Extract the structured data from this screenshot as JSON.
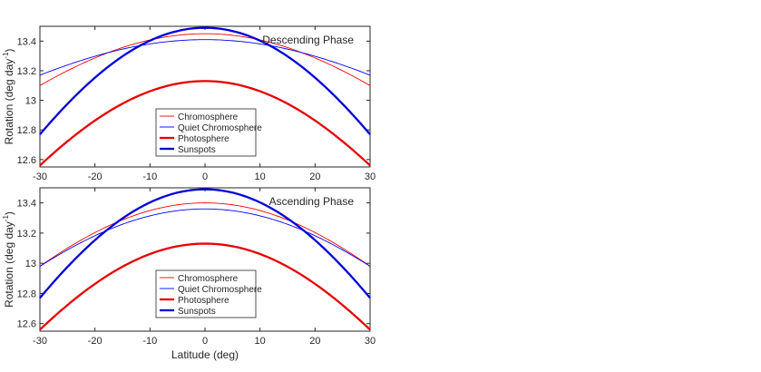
{
  "chart_data": [
    {
      "type": "line",
      "title": "Descending Phase",
      "xlabel": "",
      "ylabel": "Rotation (deg day",
      "ylabel_sup": "-1",
      "ylabel_close": ")",
      "xlim": [
        -30,
        30
      ],
      "ylim": [
        12.55,
        13.5
      ],
      "xticks": [
        -30,
        -20,
        -10,
        0,
        10,
        20,
        30
      ],
      "yticks": [
        12.6,
        12.8,
        13,
        13.2,
        13.4
      ],
      "ytick_labels": [
        "12.6",
        "12.8",
        "13",
        "13.2",
        "13.4"
      ],
      "legend_position": "lower-center",
      "series": [
        {
          "name": "Chromosphere",
          "color": "#ff0000",
          "width": "thin",
          "A": 13.45,
          "B": -0.35
        },
        {
          "name": "Quiet Chromosphere",
          "color": "#0000ff",
          "width": "thin",
          "A": 13.41,
          "B": -0.24
        },
        {
          "name": "Photosphere",
          "color": "#e60000",
          "width": "thick",
          "A": 13.13,
          "B": -0.57
        },
        {
          "name": "Sunspots",
          "color": "#0000d8",
          "width": "thick",
          "A": 13.49,
          "B": -0.72
        }
      ]
    },
    {
      "type": "line",
      "title": "Ascending Phase",
      "xlabel": "Latitude (deg)",
      "ylabel": "Rotation (deg day",
      "ylabel_sup": "-1",
      "ylabel_close": ")",
      "xlim": [
        -30,
        30
      ],
      "ylim": [
        12.55,
        13.5
      ],
      "xticks": [
        -30,
        -20,
        -10,
        0,
        10,
        20,
        30
      ],
      "yticks": [
        12.6,
        12.8,
        13,
        13.2,
        13.4
      ],
      "ytick_labels": [
        "12.6",
        "12.8",
        "13",
        "13.2",
        "13.4"
      ],
      "legend_position": "lower-center",
      "series": [
        {
          "name": "Chromosphere",
          "color": "#ff0000",
          "width": "thin",
          "A": 13.4,
          "B": -0.42
        },
        {
          "name": "Quiet Chromosphere",
          "color": "#0000ff",
          "width": "thin",
          "A": 13.36,
          "B": -0.38
        },
        {
          "name": "Photosphere",
          "color": "#e60000",
          "width": "thick",
          "A": 13.13,
          "B": -0.57
        },
        {
          "name": "Sunspots",
          "color": "#0000d8",
          "width": "thick",
          "A": 13.49,
          "B": -0.72
        }
      ]
    }
  ]
}
